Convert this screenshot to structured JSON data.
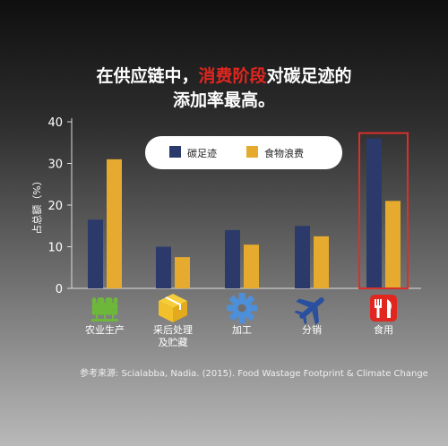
{
  "title": {
    "line1_before": "在供应链中，",
    "line1_highlight": "消费阶段",
    "line1_after": "对碳足迹的",
    "line2": "添加率最高。"
  },
  "source": "参考来源: Scialabba, Nadia. (2015). Food Wastage Footprint & Climate Change",
  "chart_data": {
    "type": "bar",
    "categories": [
      "农业生产",
      "采后处理\n及贮藏",
      "加工",
      "分销",
      "食用"
    ],
    "category_icons": [
      "wheat-icon",
      "box-icon",
      "gear-icon",
      "airplane-icon",
      "cutlery-icon"
    ],
    "series": [
      {
        "name": "碳足迹",
        "color": "#2b3a6b",
        "values": [
          16.5,
          10,
          14,
          15,
          36
        ]
      },
      {
        "name": "食物浪费",
        "color": "#e6ab2e",
        "values": [
          31,
          7.5,
          10.5,
          12.5,
          21
        ]
      }
    ],
    "ylabel": "占总额（%）",
    "ylim": [
      0,
      40
    ],
    "yticks": [
      0,
      10,
      20,
      30,
      40
    ],
    "legend_position": "top-center",
    "highlight_category": "食用",
    "highlight_color": "#d9302a"
  }
}
